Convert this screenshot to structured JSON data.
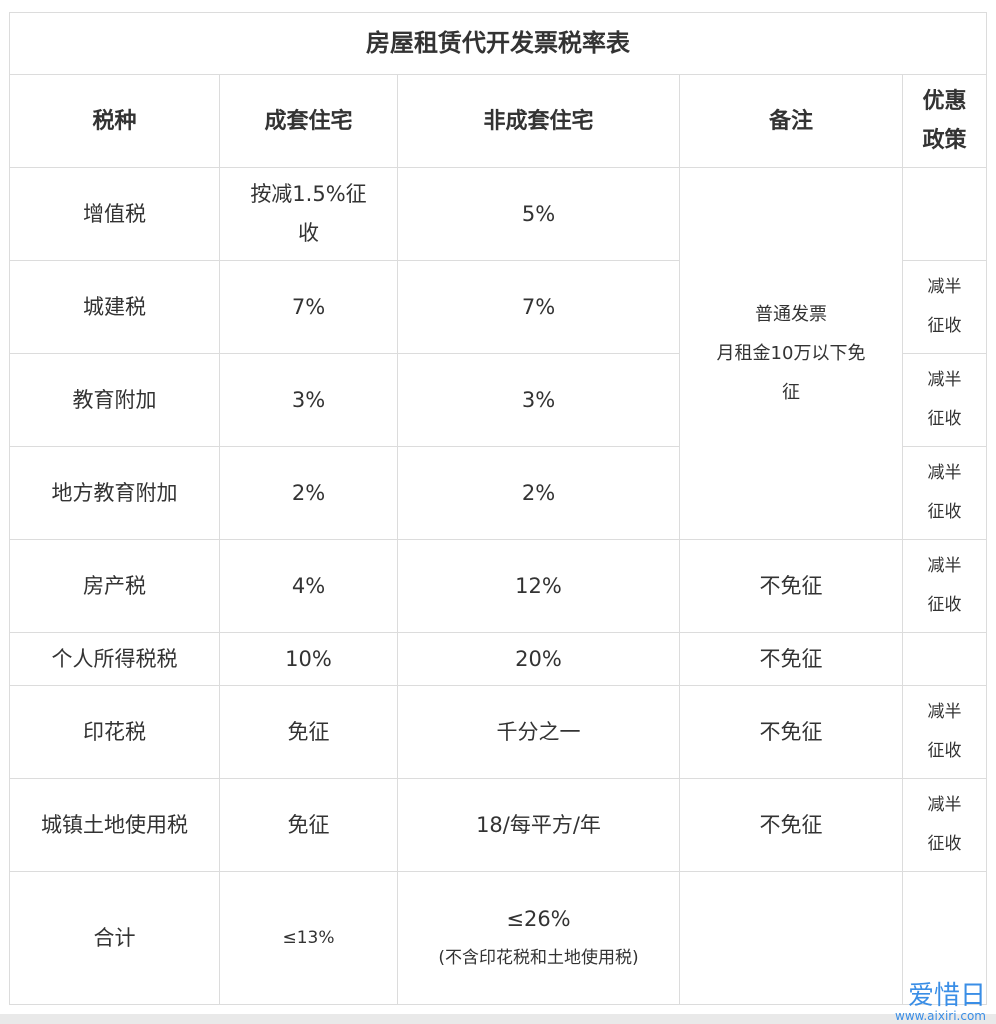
{
  "title": "房屋租赁代开发票税率表",
  "headers": [
    "税种",
    "成套住宅",
    "非成套住宅",
    "备注",
    "优惠政策"
  ],
  "rows": [
    {
      "tax": "增值税",
      "complete": "按减1.5%征收",
      "incomplete": "5%",
      "preferential": ""
    },
    {
      "tax": "城建税",
      "complete": "7%",
      "incomplete": "7%",
      "preferential": "减半征收"
    },
    {
      "tax": "教育附加",
      "complete": "3%",
      "incomplete": "3%",
      "preferential": "减半征收"
    },
    {
      "tax": "地方教育附加",
      "complete": "2%",
      "incomplete": "2%",
      "preferential": "减半征收"
    },
    {
      "tax": "房产税",
      "complete": "4%",
      "incomplete": "12%",
      "note": "不免征",
      "preferential": "减半征收"
    },
    {
      "tax": "个人所得税税",
      "complete": "10%",
      "incomplete": "20%",
      "note": "不免征",
      "preferential": ""
    },
    {
      "tax": "印花税",
      "complete": "免征",
      "incomplete": "千分之一",
      "note": "不免征",
      "preferential": "减半征收"
    },
    {
      "tax": "城镇土地使用税",
      "complete": "免征",
      "incomplete": "18/每平方/年",
      "note": "不免征",
      "preferential": "减半征收"
    }
  ],
  "merged_note": {
    "line1": "普通发票",
    "line2": "月租金10万以下免征"
  },
  "total": {
    "label": "合计",
    "complete": "≤13%",
    "incomplete": "≤26%",
    "incomplete_note": "(不含印花税和土地使用税)",
    "note": "",
    "preferential": ""
  },
  "watermark": {
    "text": "爱惜日",
    "url": "www.aixiri.com"
  }
}
